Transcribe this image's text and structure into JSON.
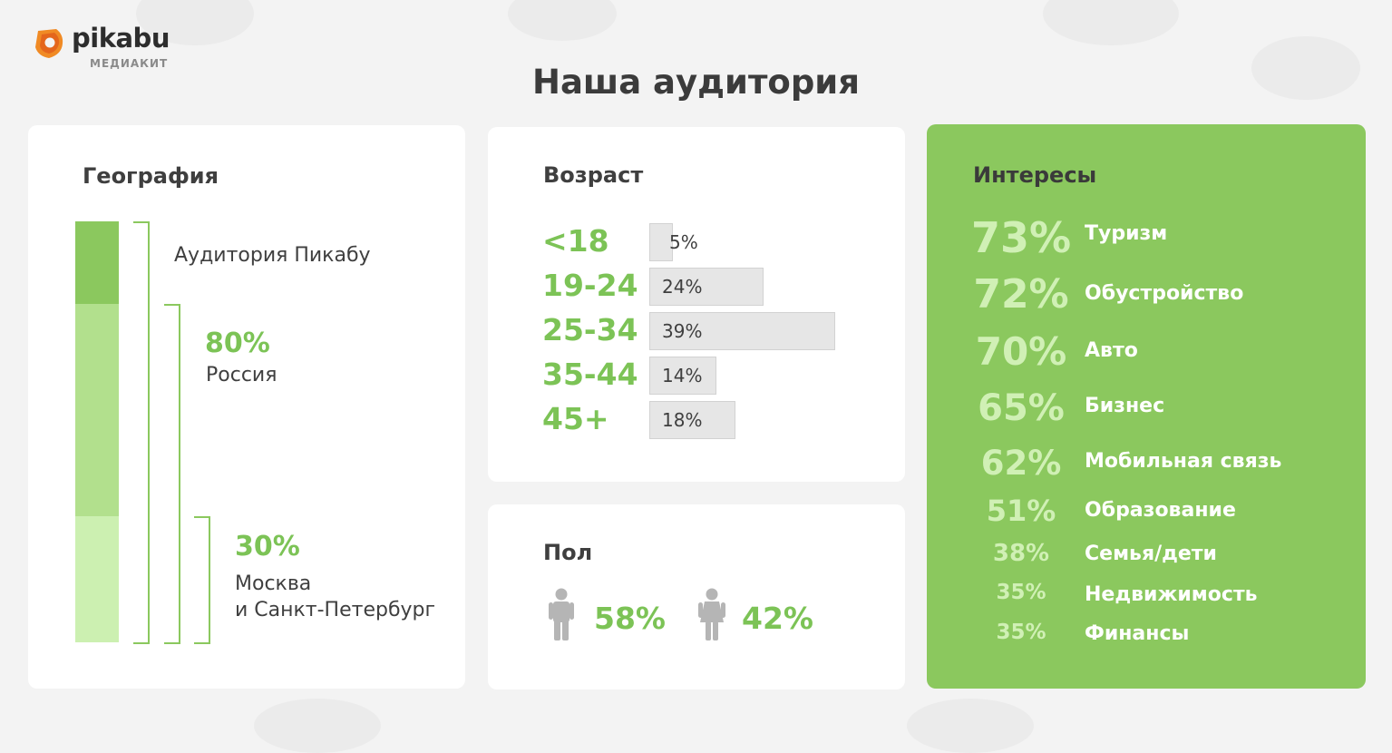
{
  "brand": {
    "name": "pikabu",
    "sub": "МЕДИАКИТ"
  },
  "page_title": "Наша аудитория",
  "geography": {
    "title": "География",
    "audience_label": "Аудитория Пикабу",
    "russia": {
      "pct": "80%",
      "label": "Россия"
    },
    "msk_spb": {
      "pct": "30%",
      "label_line1": "Москва",
      "label_line2": "и Санкт-Петербург"
    }
  },
  "age": {
    "title": "Возраст",
    "groups": [
      {
        "label": "<18",
        "pct": "5%",
        "value": 5
      },
      {
        "label": "19-24",
        "pct": "24%",
        "value": 24
      },
      {
        "label": "25-34",
        "pct": "39%",
        "value": 39
      },
      {
        "label": "35-44",
        "pct": "14%",
        "value": 14
      },
      {
        "label": "45+",
        "pct": "18%",
        "value": 18
      }
    ]
  },
  "sex": {
    "title": "Пол",
    "male_pct": "58%",
    "female_pct": "42%",
    "male_icon": "male-person-icon",
    "female_icon": "female-person-icon"
  },
  "interests": {
    "title": "Интересы",
    "items": [
      {
        "pct": "73%",
        "name": "Туризм"
      },
      {
        "pct": "72%",
        "name": "Обустройство"
      },
      {
        "pct": "70%",
        "name": "Авто"
      },
      {
        "pct": "65%",
        "name": "Бизнес"
      },
      {
        "pct": "62%",
        "name": "Мобильная связь"
      },
      {
        "pct": "51%",
        "name": "Образование"
      },
      {
        "pct": "38%",
        "name": "Семья/дети"
      },
      {
        "pct": "35%",
        "name": "Недвижимость"
      },
      {
        "pct": "35%",
        "name": "Финансы"
      }
    ]
  },
  "colors": {
    "accent": "#8bc85e",
    "accent_text": "#7cc356",
    "interests_bg": "#8bc85e"
  }
}
